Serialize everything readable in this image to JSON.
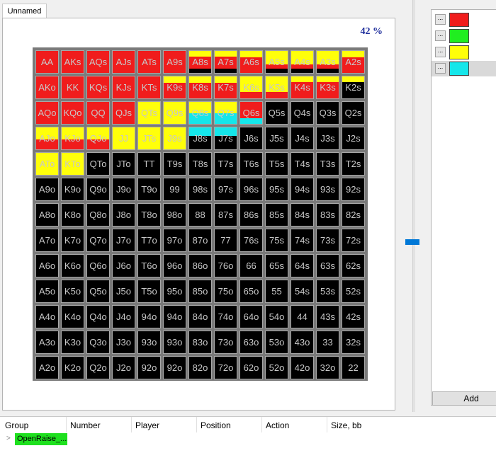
{
  "tab": {
    "label": "Unnamed"
  },
  "range": {
    "percent_label": "42 %",
    "hands": [
      [
        "AA",
        "AKs",
        "AQs",
        "AJs",
        "ATs",
        "A9s",
        "A8s",
        "A7s",
        "A6s",
        "A5s",
        "A4s",
        "A3s",
        "A2s"
      ],
      [
        "AKo",
        "KK",
        "KQs",
        "KJs",
        "KTs",
        "K9s",
        "K8s",
        "K7s",
        "K6s",
        "K5s",
        "K4s",
        "K3s",
        "K2s"
      ],
      [
        "AQo",
        "KQo",
        "QQ",
        "QJs",
        "QTs",
        "Q9s",
        "Q8s",
        "Q7s",
        "Q6s",
        "Q5s",
        "Q4s",
        "Q3s",
        "Q2s"
      ],
      [
        "AJo",
        "KJo",
        "QJo",
        "JJ",
        "JTs",
        "J9s",
        "J8s",
        "J7s",
        "J6s",
        "J5s",
        "J4s",
        "J3s",
        "J2s"
      ],
      [
        "ATo",
        "KTo",
        "QTo",
        "JTo",
        "TT",
        "T9s",
        "T8s",
        "T7s",
        "T6s",
        "T5s",
        "T4s",
        "T3s",
        "T2s"
      ],
      [
        "A9o",
        "K9o",
        "Q9o",
        "J9o",
        "T9o",
        "99",
        "98s",
        "97s",
        "96s",
        "95s",
        "94s",
        "93s",
        "92s"
      ],
      [
        "A8o",
        "K8o",
        "Q8o",
        "J8o",
        "T8o",
        "98o",
        "88",
        "87s",
        "86s",
        "85s",
        "84s",
        "83s",
        "82s"
      ],
      [
        "A7o",
        "K7o",
        "Q7o",
        "J7o",
        "T7o",
        "97o",
        "87o",
        "77",
        "76s",
        "75s",
        "74s",
        "73s",
        "72s"
      ],
      [
        "A6o",
        "K6o",
        "Q6o",
        "J6o",
        "T6o",
        "96o",
        "86o",
        "76o",
        "66",
        "65s",
        "64s",
        "63s",
        "62s"
      ],
      [
        "A5o",
        "K5o",
        "Q5o",
        "J5o",
        "T5o",
        "95o",
        "85o",
        "75o",
        "65o",
        "55",
        "54s",
        "53s",
        "52s"
      ],
      [
        "A4o",
        "K4o",
        "Q4o",
        "J4o",
        "94o",
        "94o",
        "84o",
        "74o",
        "64o",
        "54o",
        "44",
        "43s",
        "42s"
      ],
      [
        "A3o",
        "K3o",
        "Q3o",
        "J3o",
        "93o",
        "93o",
        "83o",
        "73o",
        "63o",
        "53o",
        "43o",
        "33",
        "32s"
      ],
      [
        "A2o",
        "K2o",
        "Q2o",
        "J2o",
        "92o",
        "92o",
        "82o",
        "72o",
        "62o",
        "52o",
        "42o",
        "32o",
        "22"
      ]
    ],
    "cell_fills": [
      [
        [
          [
            "red",
            1
          ]
        ],
        [
          [
            "red",
            1
          ]
        ],
        [
          [
            "red",
            1
          ]
        ],
        [
          [
            "red",
            1
          ]
        ],
        [
          [
            "red",
            1
          ]
        ],
        [
          [
            "red",
            1
          ]
        ],
        [
          [
            "yellow",
            0.25
          ],
          [
            "red",
            0.55
          ],
          [
            "black",
            0.2
          ]
        ],
        [
          [
            "yellow",
            0.25
          ],
          [
            "red",
            0.55
          ],
          [
            "black",
            0.2
          ]
        ],
        [
          [
            "yellow",
            0.3
          ],
          [
            "red",
            0.7
          ]
        ],
        [
          [
            "yellow",
            0.6
          ],
          [
            "red",
            0.2
          ],
          [
            "black",
            0.2
          ]
        ],
        [
          [
            "yellow",
            0.6
          ],
          [
            "red",
            0.2
          ],
          [
            "black",
            0.2
          ]
        ],
        [
          [
            "yellow",
            0.6
          ],
          [
            "red",
            0.2
          ],
          [
            "black",
            0.2
          ]
        ],
        [
          [
            "yellow",
            0.3
          ],
          [
            "red",
            0.7
          ]
        ]
      ],
      [
        [
          [
            "red",
            1
          ]
        ],
        [
          [
            "red",
            1
          ]
        ],
        [
          [
            "red",
            1
          ]
        ],
        [
          [
            "red",
            1
          ]
        ],
        [
          [
            "red",
            1
          ]
        ],
        [
          [
            "yellow",
            0.3
          ],
          [
            "red",
            0.7
          ]
        ],
        [
          [
            "yellow",
            0.3
          ],
          [
            "red",
            0.7
          ]
        ],
        [
          [
            "yellow",
            0.3
          ],
          [
            "red",
            0.7
          ]
        ],
        [
          [
            "yellow",
            0.7
          ],
          [
            "red",
            0.3
          ]
        ],
        [
          [
            "yellow",
            0.7
          ],
          [
            "red",
            0.3
          ]
        ],
        [
          [
            "yellow",
            0.25
          ],
          [
            "red",
            0.75
          ]
        ],
        [
          [
            "yellow",
            0.25
          ],
          [
            "red",
            0.75
          ]
        ],
        [
          [
            "yellow",
            0.25
          ],
          [
            "black",
            0.75
          ]
        ]
      ],
      [
        [
          [
            "red",
            1
          ]
        ],
        [
          [
            "red",
            1
          ]
        ],
        [
          [
            "red",
            1
          ]
        ],
        [
          [
            "red",
            1
          ]
        ],
        [
          [
            "yellow",
            1
          ]
        ],
        [
          [
            "yellow",
            1
          ]
        ],
        [
          [
            "yellow",
            0.5
          ],
          [
            "cyan",
            0.5
          ]
        ],
        [
          [
            "yellow",
            0.5
          ],
          [
            "cyan",
            0.5
          ]
        ],
        [
          [
            "red",
            0.75
          ],
          [
            "cyan",
            0.25
          ]
        ],
        [
          [
            "black",
            1
          ]
        ],
        [
          [
            "black",
            1
          ]
        ],
        [
          [
            "black",
            1
          ]
        ],
        [
          [
            "black",
            1
          ]
        ]
      ],
      [
        [
          [
            "yellow",
            0.55
          ],
          [
            "red",
            0.45
          ]
        ],
        [
          [
            "yellow",
            0.55
          ],
          [
            "red",
            0.45
          ]
        ],
        [
          [
            "yellow",
            0.55
          ],
          [
            "red",
            0.45
          ]
        ],
        [
          [
            "yellow",
            1
          ]
        ],
        [
          [
            "yellow",
            1
          ]
        ],
        [
          [
            "yellow",
            1
          ]
        ],
        [
          [
            "cyan",
            0.4
          ],
          [
            "black",
            0.6
          ]
        ],
        [
          [
            "cyan",
            0.4
          ],
          [
            "black",
            0.6
          ]
        ],
        [
          [
            "black",
            1
          ]
        ],
        [
          [
            "black",
            1
          ]
        ],
        [
          [
            "black",
            1
          ]
        ],
        [
          [
            "black",
            1
          ]
        ],
        [
          [
            "black",
            1
          ]
        ]
      ],
      [
        [
          [
            "yellow",
            1
          ]
        ],
        [
          [
            "yellow",
            1
          ]
        ],
        [
          [
            "black",
            1
          ]
        ],
        [
          [
            "black",
            1
          ]
        ],
        [
          [
            "black",
            1
          ]
        ],
        [
          [
            "black",
            1
          ]
        ],
        [
          [
            "black",
            1
          ]
        ],
        [
          [
            "black",
            1
          ]
        ],
        [
          [
            "black",
            1
          ]
        ],
        [
          [
            "black",
            1
          ]
        ],
        [
          [
            "black",
            1
          ]
        ],
        [
          [
            "black",
            1
          ]
        ],
        [
          [
            "black",
            1
          ]
        ]
      ]
    ]
  },
  "colors": {
    "red": "#f01c1c",
    "yellow": "#ffff0a",
    "cyan": "#15e6ea",
    "black": "#000000",
    "green": "#20ee20",
    "slider": "#0078d7",
    "percent_text": "#1f2e9c",
    "group_badge": "#1ee01e"
  },
  "legend": {
    "items": [
      {
        "dots": "...",
        "color": "red"
      },
      {
        "dots": "...",
        "color": "green"
      },
      {
        "dots": "...",
        "color": "yellow"
      },
      {
        "dots": "...",
        "color": "cyan",
        "selected": true
      }
    ],
    "add_label": "Add"
  },
  "table": {
    "columns": [
      "Group",
      "Number",
      "Player",
      "Position",
      "Action",
      "Size, bb"
    ],
    "rows": [
      {
        "expander": ">",
        "group": "OpenRaise_..."
      }
    ]
  }
}
